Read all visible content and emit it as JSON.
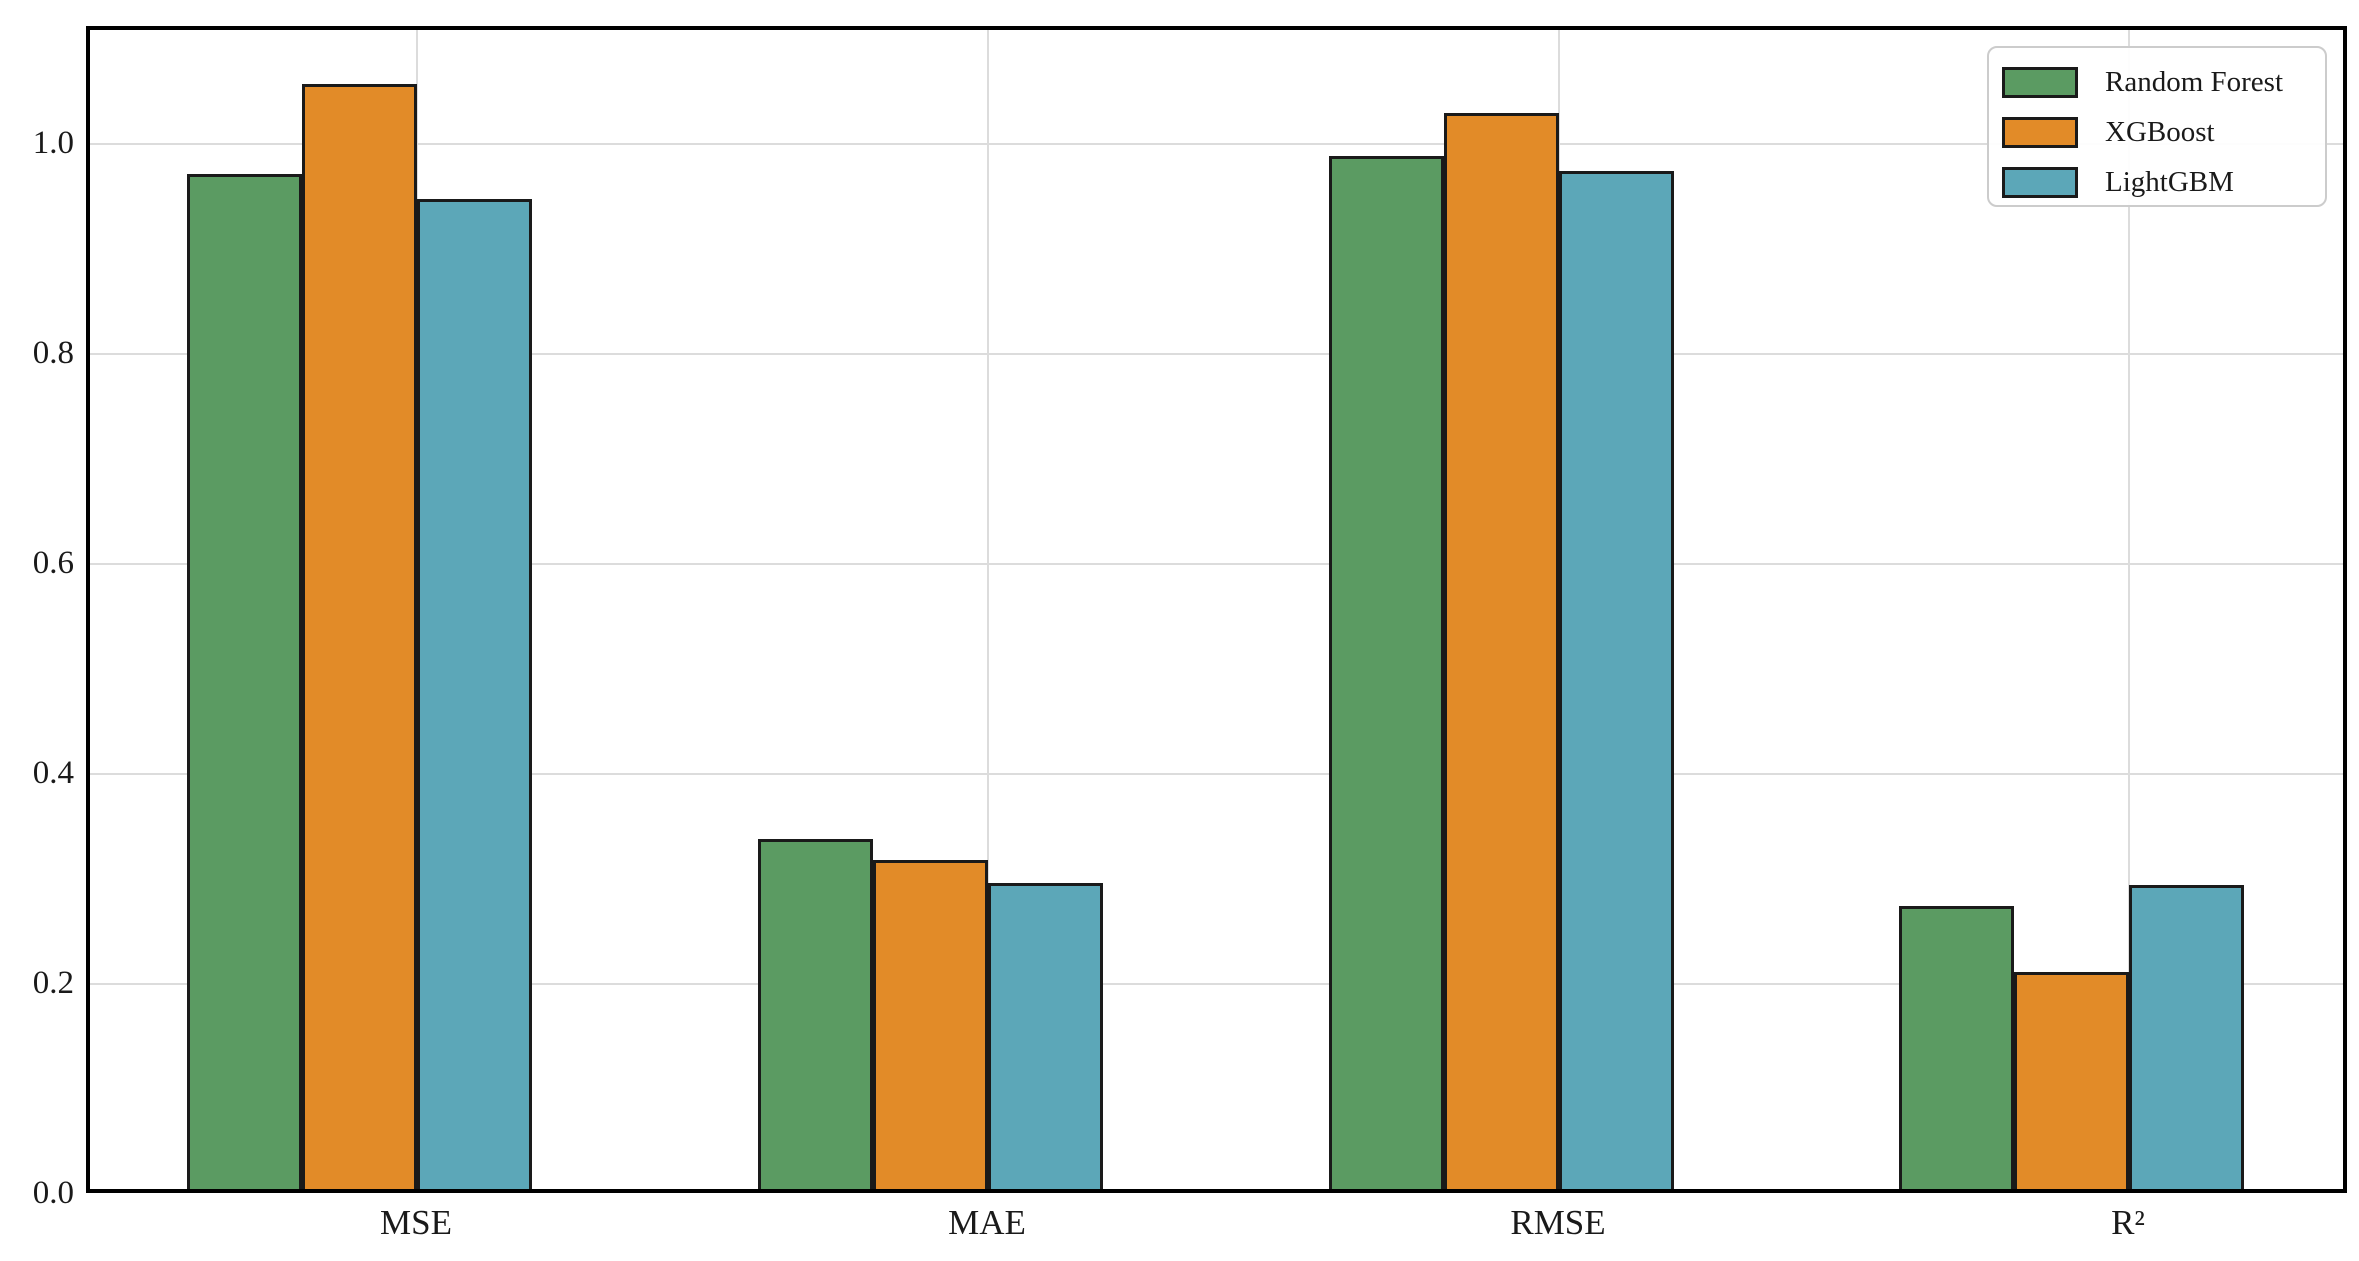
{
  "chart_data": {
    "type": "bar",
    "categories": [
      "MSE",
      "MAE",
      "RMSE",
      "R²"
    ],
    "series": [
      {
        "name": "Random Forest",
        "color": "#5b9b62",
        "values": [
          0.97,
          0.337,
          0.987,
          0.273
        ]
      },
      {
        "name": "XGBoost",
        "color": "#e28b28",
        "values": [
          1.056,
          0.317,
          1.028,
          0.21
        ]
      },
      {
        "name": "LightGBM",
        "color": "#5ca7b8",
        "values": [
          0.946,
          0.295,
          0.973,
          0.293
        ]
      }
    ],
    "title": "",
    "xlabel": "",
    "ylabel": "",
    "ylim": [
      0,
      1.111
    ],
    "xlim_units": [
      -0.58,
      3.38
    ],
    "yticks": [
      0.0,
      0.2,
      0.4,
      0.6,
      0.8,
      1.0
    ],
    "ytick_labels": [
      "0.0",
      "0.2",
      "0.4",
      "0.6",
      "0.8",
      "1.0"
    ],
    "grid": true,
    "grid_vertical_at_ticks": true,
    "legend_position": "upper right",
    "bar_width_units": 0.2,
    "series_offsets_units": [
      -0.3,
      -0.1,
      0.1
    ],
    "colors": {
      "bar_edge": "#1a1a1a",
      "grid": "#dcdcdc",
      "frame": "#000000",
      "text": "#1a1a1a",
      "legend_border": "#cccccc",
      "background": "#ffffff"
    }
  }
}
